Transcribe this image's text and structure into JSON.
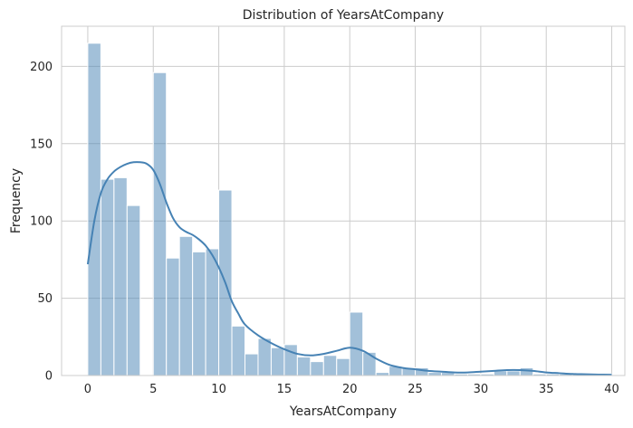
{
  "chart_data": {
    "type": "bar",
    "subtype": "histogram-with-kde",
    "title": "Distribution of YearsAtCompany",
    "xlabel": "YearsAtCompany",
    "ylabel": "Frequency",
    "xlim": [
      -2,
      41
    ],
    "ylim": [
      0,
      226
    ],
    "xticks": [
      0,
      5,
      10,
      15,
      20,
      25,
      30,
      35,
      40
    ],
    "yticks": [
      0,
      50,
      100,
      150,
      200
    ],
    "bin_width": 1,
    "bins_start": [
      0,
      1,
      2,
      3,
      4,
      5,
      6,
      7,
      8,
      9,
      10,
      11,
      12,
      13,
      14,
      15,
      16,
      17,
      18,
      19,
      20,
      21,
      22,
      23,
      24,
      25,
      26,
      27,
      28,
      29,
      30,
      31,
      32,
      33,
      34,
      35,
      36,
      37,
      38,
      39
    ],
    "values": [
      215,
      127,
      128,
      110,
      0,
      196,
      76,
      90,
      80,
      82,
      120,
      32,
      14,
      24,
      18,
      20,
      12,
      9,
      13,
      11,
      41,
      15,
      2,
      6,
      5,
      5,
      2,
      2,
      1,
      1,
      1,
      3,
      3,
      5,
      1,
      1,
      1,
      1,
      1,
      1
    ],
    "kde": {
      "x": [
        0,
        0.5,
        1,
        1.5,
        2,
        2.5,
        3,
        3.5,
        4,
        4.5,
        5,
        5.5,
        6,
        6.5,
        7,
        7.5,
        8,
        8.5,
        9,
        9.5,
        10,
        10.5,
        11,
        11.5,
        12,
        13,
        14,
        15,
        16,
        17,
        18,
        19,
        20,
        21,
        22,
        23,
        24,
        25,
        26,
        27,
        28,
        29,
        30,
        31,
        32,
        33,
        34,
        35,
        36,
        37,
        38,
        39,
        40
      ],
      "y": [
        72,
        100,
        118,
        127,
        132,
        135,
        137,
        138,
        138,
        137,
        133,
        124,
        112,
        102,
        96,
        93,
        91,
        88,
        84,
        78,
        70,
        60,
        48,
        40,
        33,
        26,
        21,
        17,
        14,
        13,
        14,
        16,
        18,
        16,
        11,
        7,
        5,
        4,
        3,
        2.5,
        2,
        2,
        2.5,
        3,
        3.5,
        3.5,
        3,
        2,
        1.5,
        1,
        0.8,
        0.6,
        0.5
      ]
    },
    "colors": {
      "bars": "#4682b4",
      "kde": "#4682b4",
      "grid": "#cccccc"
    },
    "grid": true
  }
}
